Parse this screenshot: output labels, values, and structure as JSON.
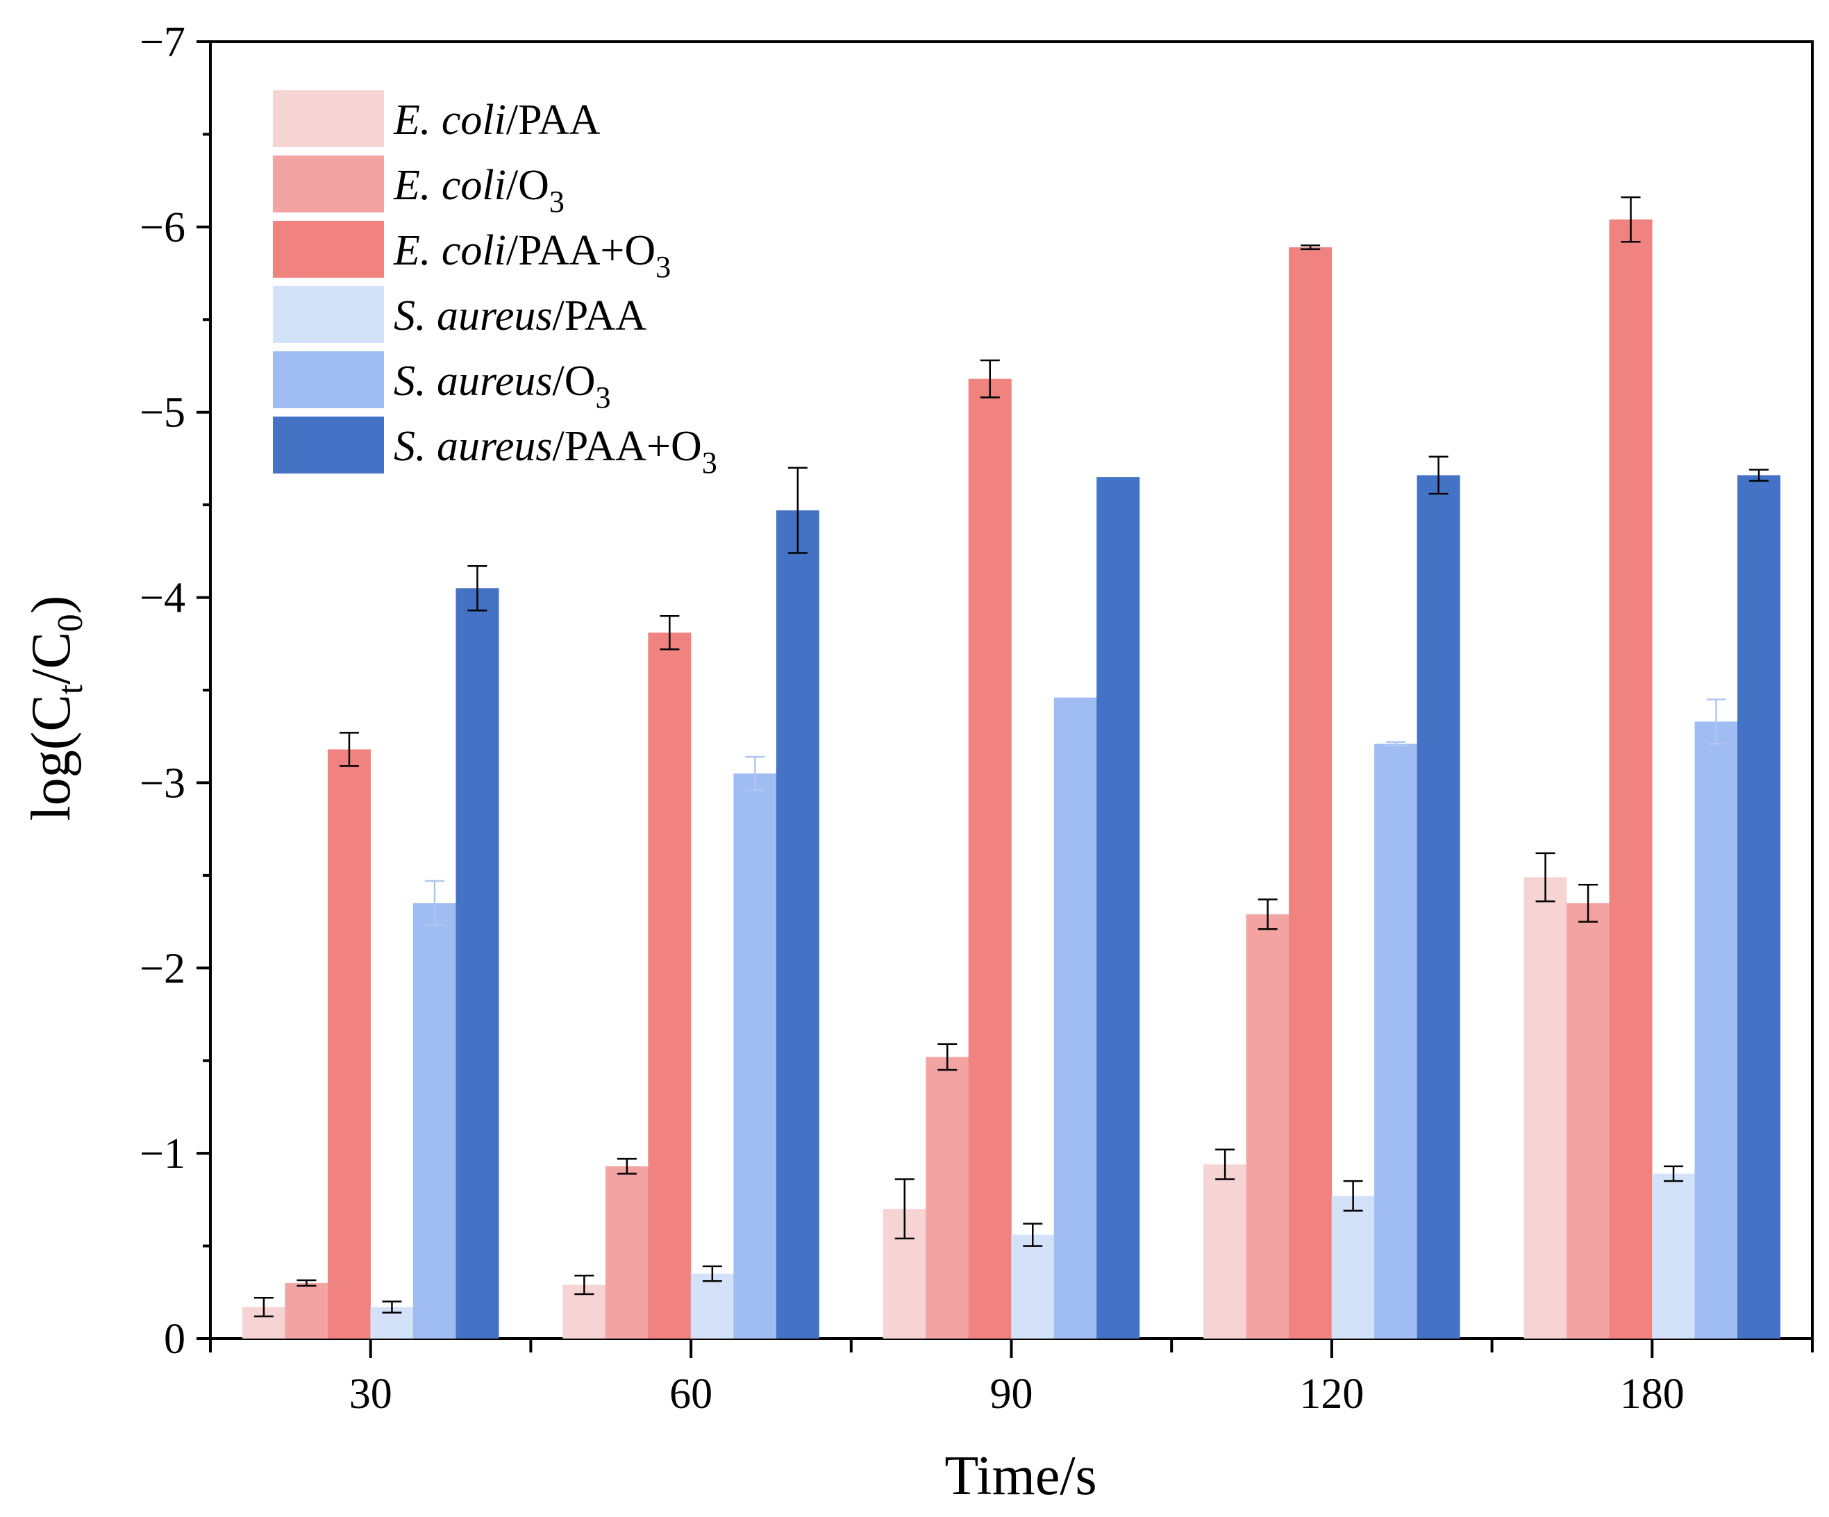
{
  "chart_data": {
    "type": "bar",
    "xlabel": "Time/s",
    "ylabel": {
      "base": "log(C",
      "sub1": "t",
      "mid": "/C",
      "sub2": "0",
      "end": ")"
    },
    "categories": [
      "30",
      "60",
      "90",
      "120",
      "180"
    ],
    "ylim": [
      0,
      -7
    ],
    "yticks": [
      "0",
      "−1",
      "−2",
      "−3",
      "−4",
      "−5",
      "−6",
      "−7"
    ],
    "ytick_values": [
      0,
      -1,
      -2,
      -3,
      -4,
      -5,
      -6,
      -7
    ],
    "legend_position": "top-left",
    "series": [
      {
        "name": {
          "organism": "E. coli",
          "treatment": "/PAA",
          "sub": "",
          "tail": ""
        },
        "color": "#F7D4D4",
        "error_color": "#000000",
        "values": [
          -0.17,
          -0.29,
          -0.7,
          -0.94,
          -2.49
        ],
        "errors": [
          0.05,
          0.05,
          0.16,
          0.08,
          0.13
        ]
      },
      {
        "name": {
          "organism": "E. coli",
          "treatment": "/O",
          "sub": "3",
          "tail": ""
        },
        "color": "#F4A3A3",
        "error_color": "#000000",
        "values": [
          -0.3,
          -0.93,
          -1.52,
          -2.29,
          -2.35
        ],
        "errors": [
          0.015,
          0.04,
          0.07,
          0.08,
          0.1
        ]
      },
      {
        "name": {
          "organism": "E. coli",
          "treatment": "/PAA+O",
          "sub": "3",
          "tail": ""
        },
        "color": "#F0827F",
        "error_color": "#000000",
        "values": [
          -3.18,
          -3.81,
          -5.18,
          -5.89,
          -6.04
        ],
        "errors": [
          0.09,
          0.09,
          0.1,
          0.01,
          0.12
        ]
      },
      {
        "name": {
          "organism": "S. aureus",
          "treatment": "/PAA",
          "sub": "",
          "tail": ""
        },
        "color": "#D3E2F9",
        "error_color": "#000000",
        "values": [
          -0.17,
          -0.35,
          -0.56,
          -0.77,
          -0.89
        ],
        "errors": [
          0.03,
          0.04,
          0.06,
          0.08,
          0.04
        ]
      },
      {
        "name": {
          "organism": "S. aureus",
          "treatment": "/O",
          "sub": "3",
          "tail": ""
        },
        "color": "#9FBDF3",
        "error_color": "#AFC7EF",
        "values": [
          -2.35,
          -3.05,
          -3.46,
          -3.21,
          -3.33
        ],
        "errors": [
          0.12,
          0.09,
          0.0,
          0.01,
          0.12
        ]
      },
      {
        "name": {
          "organism": "S. aureus",
          "treatment": "/PAA+O",
          "sub": "3",
          "tail": ""
        },
        "color": "#4472C4",
        "error_color": "#000000",
        "values": [
          -4.05,
          -4.47,
          -4.65,
          -4.66,
          -4.66
        ],
        "errors": [
          0.12,
          0.23,
          0.0,
          0.1,
          0.03
        ]
      }
    ]
  }
}
